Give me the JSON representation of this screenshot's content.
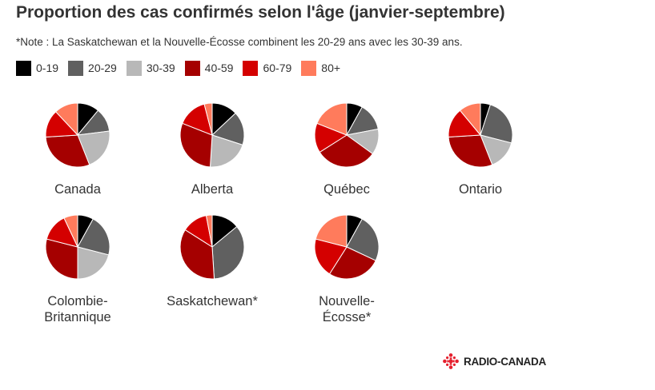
{
  "title": "Proportion des cas confirmés selon l'âge (janvier-septembre)",
  "note": "*Note : La Saskatchewan et la Nouvelle-Écosse combinent les 20-29 ans avec les 30-39 ans.",
  "logo": {
    "text": "RADIO-CANADA",
    "color": "#e5202e"
  },
  "chart_data": {
    "type": "pie",
    "categories": [
      "0-19",
      "20-29",
      "30-39",
      "40-59",
      "60-79",
      "80+"
    ],
    "colors": [
      "#000000",
      "#606060",
      "#b8b8b8",
      "#a50000",
      "#d40000",
      "#ff7b5c"
    ],
    "legend_position": "top-left",
    "pies": [
      {
        "label": "Canada",
        "values": [
          11,
          12,
          21,
          30,
          14,
          12
        ]
      },
      {
        "label": "Alberta",
        "values": [
          13,
          17,
          21,
          30,
          15,
          4
        ]
      },
      {
        "label": "Québec",
        "values": [
          8,
          14,
          13,
          31,
          15,
          19
        ]
      },
      {
        "label": "Ontario",
        "values": [
          5,
          24,
          15,
          30,
          15,
          11
        ]
      },
      {
        "label": "Colombie-\nBritannique",
        "values": [
          8,
          21,
          21,
          29,
          14,
          7
        ]
      },
      {
        "label": "Saskatchewan*",
        "values": [
          14,
          35,
          0,
          35,
          13,
          3
        ]
      },
      {
        "label": "Nouvelle-\nÉcosse*",
        "values": [
          8,
          24,
          0,
          27,
          20,
          21
        ]
      }
    ]
  }
}
